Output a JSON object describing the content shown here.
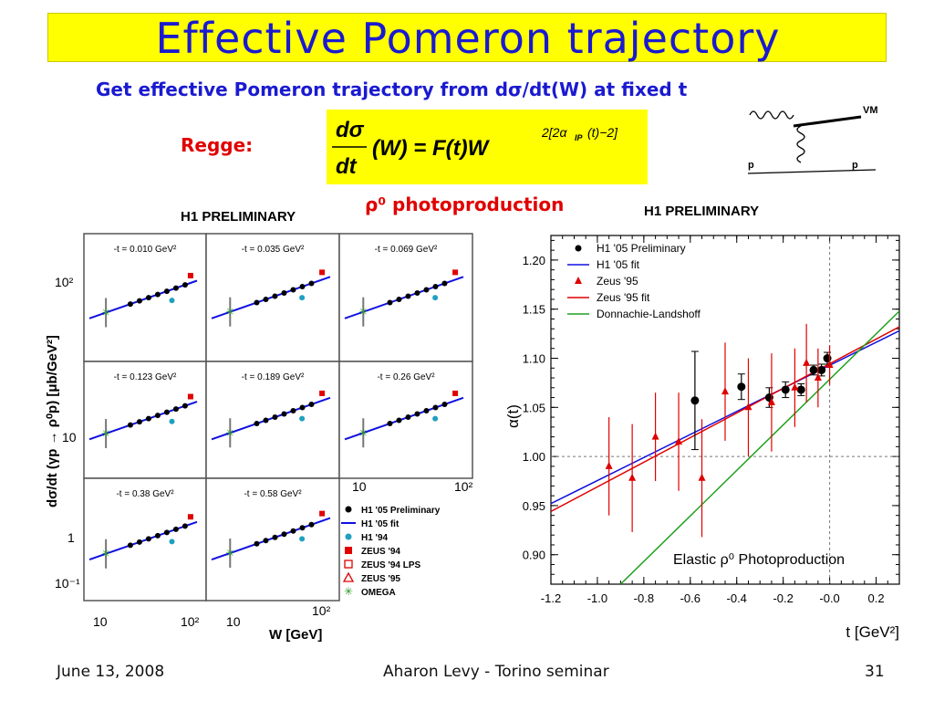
{
  "title": "Effective Pomeron trajectory",
  "subtitle": "Get effective Pomeron trajectory from dσ/dt(W) at fixed t",
  "regge_label": "Regge:",
  "formula": {
    "num": "dσ",
    "den": "dt",
    "mid": "(W) = F(t)W",
    "exponent": "2[2α",
    "exp_sub": "IP",
    "exp_tail": "(t)−2]"
  },
  "diagram_labels": {
    "vm": "VM",
    "p_left": "p",
    "p_right": "p"
  },
  "photoproduction_label": "ρ⁰ photoproduction",
  "left_plot": {
    "header": "H1 PRELIMINARY",
    "ylabel": "dσ/dt (γp → ρ⁰p) [μb/GeV²]",
    "xlabel": "W [GeV]",
    "panels": [
      "-t = 0.010 GeV²",
      "-t = 0.035 GeV²",
      "-t = 0.069 GeV²",
      "-t = 0.123 GeV²",
      "-t = 0.189 GeV²",
      "-t = 0.26 GeV²",
      "-t = 0.38 GeV²",
      "-t = 0.58 GeV²"
    ],
    "yticks": [
      "10²",
      "10",
      "1",
      "10⁻¹"
    ],
    "xticks_bottom": [
      "10",
      "10²"
    ],
    "xticks_panel": [
      "10",
      "10²"
    ],
    "legend": [
      "H1 '05 Preliminary",
      "H1 '05 fit",
      "H1 '94",
      "ZEUS '94",
      "ZEUS '94 LPS",
      "ZEUS '95",
      "OMEGA"
    ]
  },
  "chart_data": {
    "type": "scatter",
    "header": "H1 PRELIMINARY",
    "title": "",
    "annotation": "Elastic ρ⁰ Photoproduction",
    "xlabel": "t [GeV²]",
    "ylabel": "α(t)",
    "xlim": [
      -1.2,
      0.3
    ],
    "ylim": [
      0.87,
      1.225
    ],
    "xticks": [
      -1.2,
      -1.0,
      -0.8,
      -0.6,
      -0.4,
      -0.2,
      -0.0,
      0.2
    ],
    "xtick_labels": [
      "-1.2",
      "-1.0",
      "-0.8",
      "-0.6",
      "-0.4",
      "-0.2",
      "-0.0",
      "0.2"
    ],
    "yticks": [
      0.9,
      0.95,
      1.0,
      1.05,
      1.1,
      1.15,
      1.2
    ],
    "ytick_labels": [
      "0.90",
      "0.95",
      "1.00",
      "1.05",
      "1.10",
      "1.15",
      "1.20"
    ],
    "reference_lines": {
      "x": 0.0,
      "y": 1.0
    },
    "legend": [
      "H1 '05 Preliminary",
      "H1 '05 fit",
      "Zeus '95",
      "Zeus '95 fit",
      "Donnachie-Landshoff"
    ],
    "series": [
      {
        "name": "H1 '05 Preliminary",
        "marker": "circle",
        "color": "#000000",
        "points": [
          [
            -0.58,
            1.057,
            0.05
          ],
          [
            -0.38,
            1.071,
            0.013
          ],
          [
            -0.26,
            1.06,
            0.01
          ],
          [
            -0.19,
            1.068,
            0.008
          ],
          [
            -0.123,
            1.068,
            0.006
          ],
          [
            -0.069,
            1.088,
            0.005
          ],
          [
            -0.035,
            1.088,
            0.006
          ],
          [
            -0.01,
            1.1,
            0.006
          ]
        ]
      },
      {
        "name": "Zeus '95",
        "marker": "triangle",
        "color": "#e00000",
        "points": [
          [
            -0.95,
            0.99,
            0.05
          ],
          [
            -0.85,
            0.978,
            0.055
          ],
          [
            -0.75,
            1.02,
            0.045
          ],
          [
            -0.65,
            1.015,
            0.05
          ],
          [
            -0.55,
            0.978,
            0.06
          ],
          [
            -0.45,
            1.066,
            0.05
          ],
          [
            -0.35,
            1.05,
            0.05
          ],
          [
            -0.25,
            1.055,
            0.05
          ],
          [
            -0.15,
            1.07,
            0.04
          ],
          [
            -0.1,
            1.095,
            0.04
          ],
          [
            -0.05,
            1.08,
            0.03
          ],
          [
            0.0,
            1.093,
            0.02
          ]
        ]
      },
      {
        "name": "H1 '05 fit",
        "line": true,
        "color": "#1010e0",
        "points": [
          [
            -1.2,
            0.952
          ],
          [
            0.3,
            1.128
          ]
        ]
      },
      {
        "name": "Zeus '95 fit",
        "line": true,
        "color": "#e00000",
        "points": [
          [
            -1.2,
            0.944
          ],
          [
            0.3,
            1.132
          ]
        ]
      },
      {
        "name": "Donnachie-Landshoff",
        "line": true,
        "color": "#20a020",
        "points": [
          [
            -0.9,
            0.87
          ],
          [
            0.3,
            1.148
          ]
        ]
      }
    ]
  },
  "footer": {
    "date": "June 13, 2008",
    "center": "Aharon Levy - Torino seminar",
    "page": "31"
  }
}
